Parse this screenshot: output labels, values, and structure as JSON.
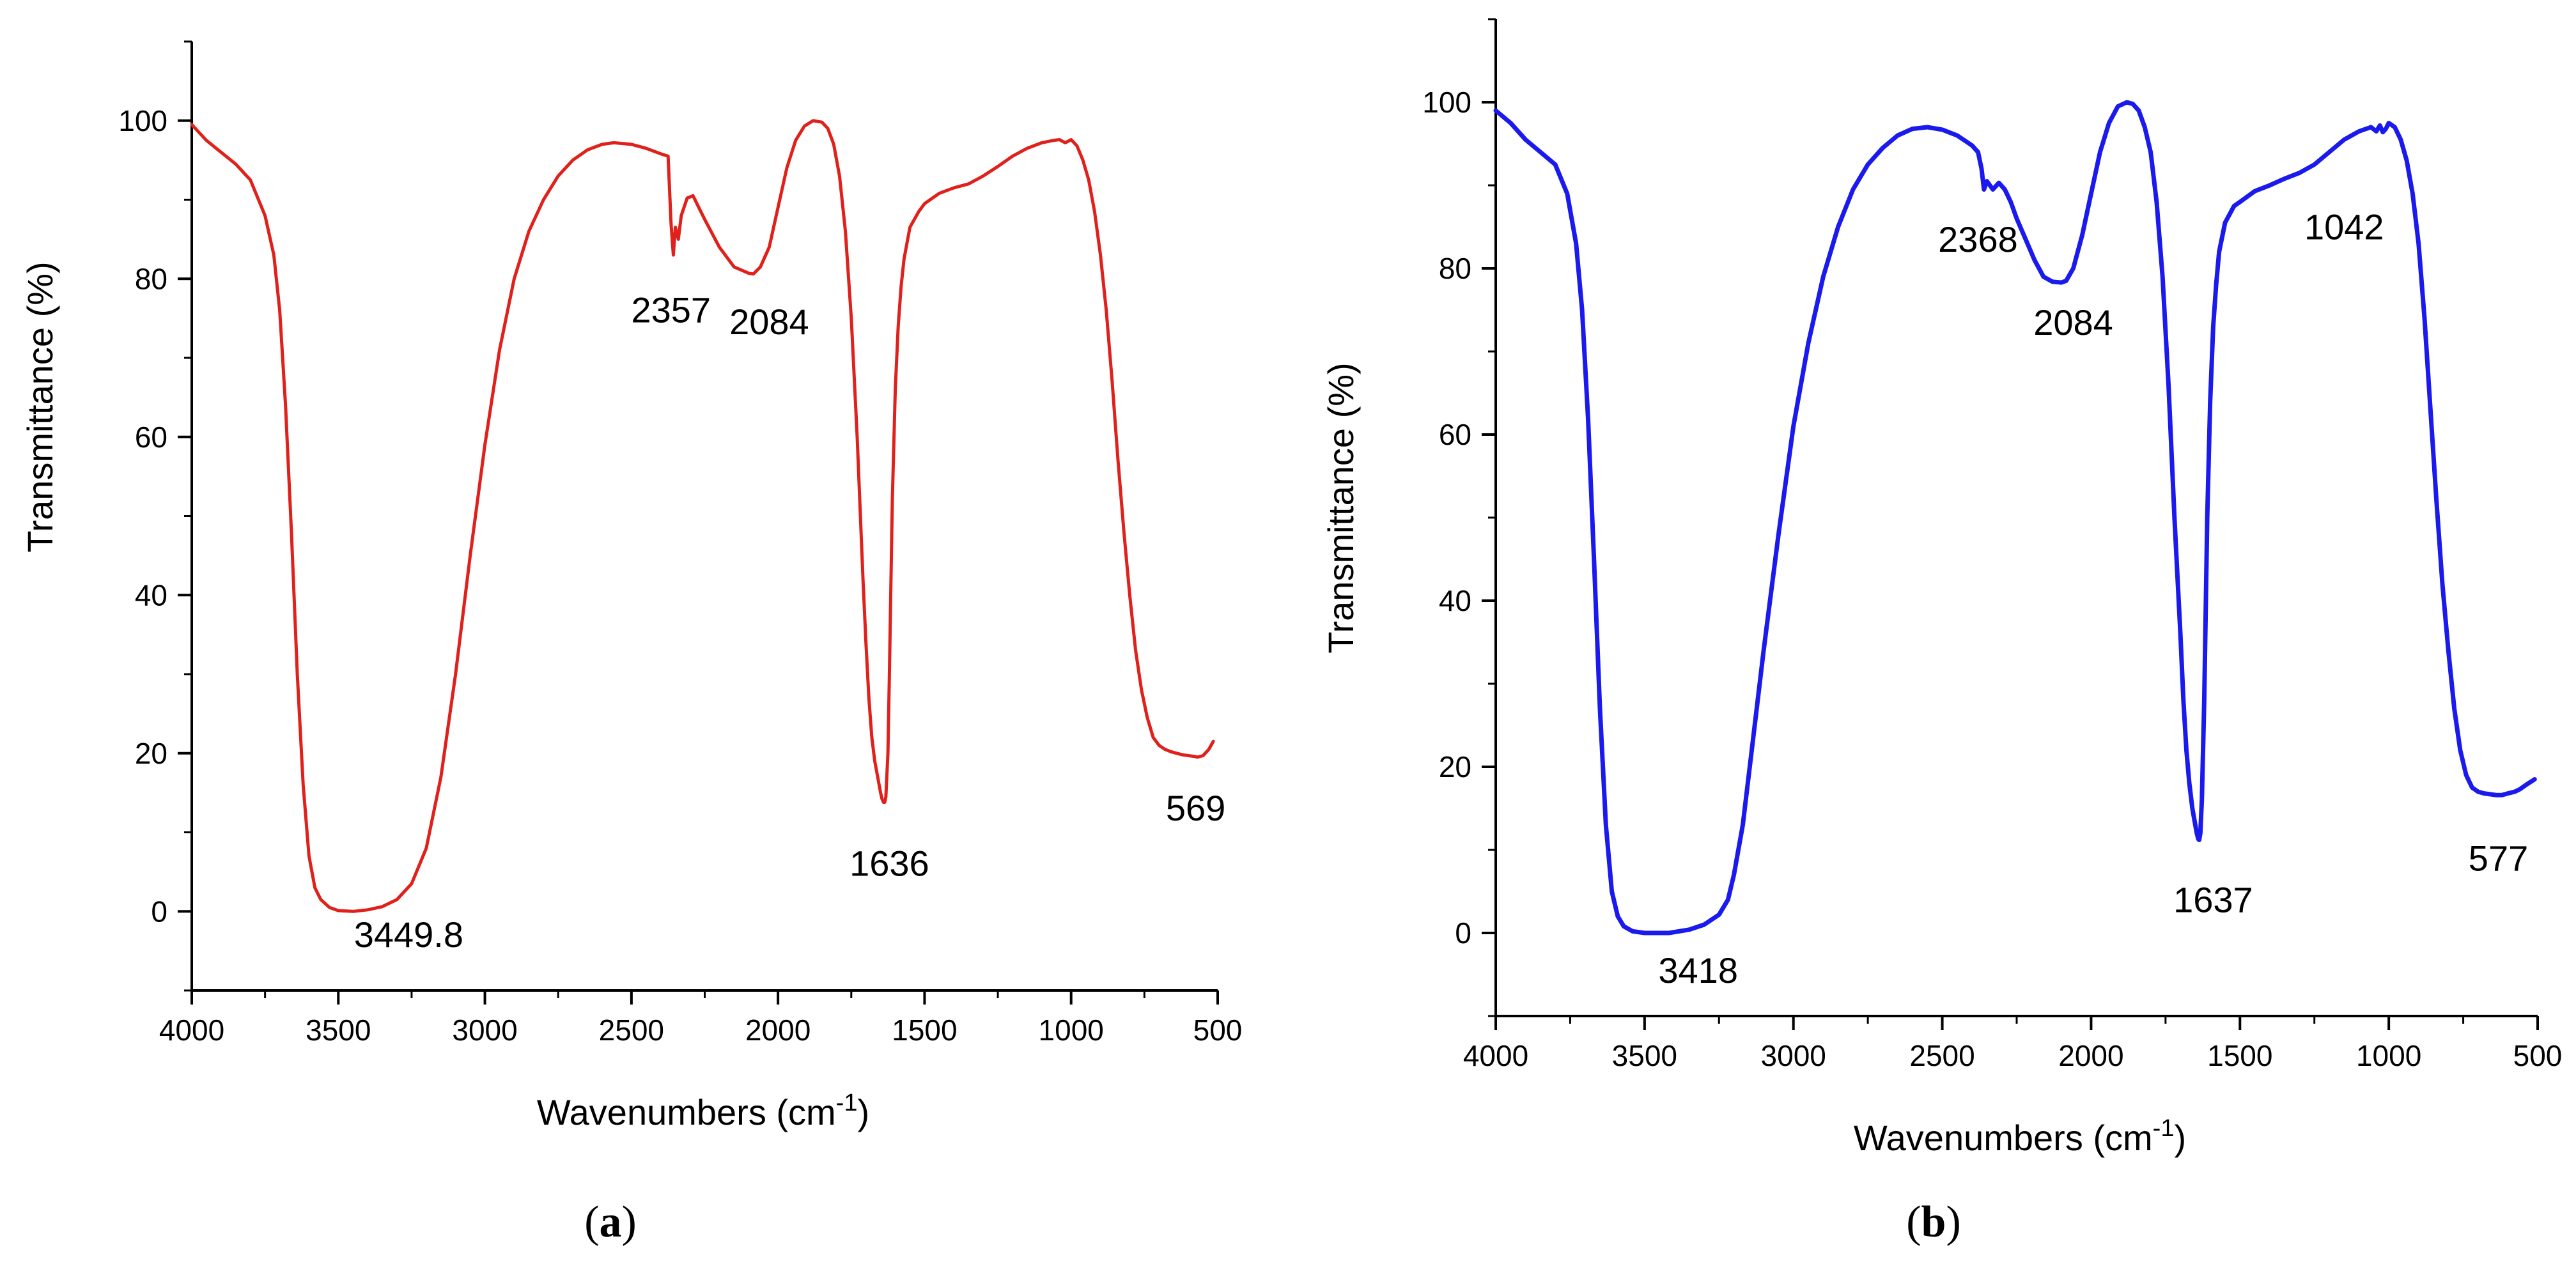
{
  "chart_data": [
    {
      "type": "line",
      "panel_label": "a",
      "xlabel": "Wavenumbers (cm",
      "xlabel_sup": "-1",
      "xlabel_close": ")",
      "ylabel": "Transmittance (%)",
      "xlim": [
        4000,
        500
      ],
      "ylim": [
        -10,
        110
      ],
      "xticks": [
        4000,
        3500,
        3000,
        2500,
        2000,
        1500,
        1000,
        500
      ],
      "yticks": [
        0,
        20,
        40,
        60,
        80,
        100
      ],
      "series": [
        {
          "name": "spectrum-a",
          "color": "#e0201b",
          "x": [
            4000,
            3950,
            3900,
            3850,
            3800,
            3750,
            3720,
            3700,
            3680,
            3660,
            3640,
            3620,
            3600,
            3580,
            3560,
            3530,
            3500,
            3449.8,
            3400,
            3350,
            3300,
            3250,
            3200,
            3150,
            3100,
            3050,
            3000,
            2950,
            2900,
            2850,
            2800,
            2750,
            2700,
            2650,
            2600,
            2560,
            2500,
            2450,
            2400,
            2375,
            2365,
            2357,
            2350,
            2340,
            2330,
            2310,
            2290,
            2270,
            2250,
            2200,
            2150,
            2100,
            2084,
            2060,
            2030,
            2000,
            1970,
            1940,
            1910,
            1880,
            1850,
            1830,
            1810,
            1790,
            1770,
            1750,
            1730,
            1710,
            1700,
            1690,
            1680,
            1670,
            1660,
            1650,
            1645,
            1640,
            1636,
            1632,
            1625,
            1620,
            1610,
            1600,
            1590,
            1580,
            1570,
            1550,
            1520,
            1500,
            1450,
            1400,
            1350,
            1300,
            1250,
            1200,
            1150,
            1100,
            1060,
            1040,
            1020,
            1000,
            980,
            960,
            940,
            920,
            900,
            880,
            860,
            840,
            820,
            800,
            780,
            760,
            740,
            720,
            700,
            680,
            660,
            640,
            620,
            600,
            580,
            569,
            550,
            530,
            515
          ],
          "y": [
            99.5,
            97.5,
            96,
            94.5,
            92.5,
            88,
            83,
            76,
            64,
            48,
            30,
            16,
            7,
            3,
            1.5,
            0.5,
            0.1,
            0.0,
            0.2,
            0.6,
            1.5,
            3.5,
            8,
            17,
            30,
            45,
            59,
            71,
            80,
            86,
            90,
            93,
            95,
            96.3,
            97,
            97.2,
            97,
            96.5,
            95.8,
            95.5,
            87,
            83.0,
            86.5,
            85,
            88,
            90.2,
            90.5,
            89,
            87.5,
            84,
            81.5,
            80.7,
            80.6,
            81.5,
            84,
            89,
            94,
            97.5,
            99.3,
            100,
            99.8,
            99,
            97,
            93,
            86,
            75,
            60,
            42,
            34,
            27,
            22,
            19,
            17,
            15,
            14.2,
            13.8,
            13.8,
            14.5,
            20,
            30,
            52,
            66,
            74,
            79,
            82.5,
            86.5,
            88.5,
            89.5,
            90.8,
            91.5,
            92,
            93,
            94.2,
            95.5,
            96.5,
            97.2,
            97.5,
            97.6,
            97.2,
            97.6,
            96.8,
            95,
            92.5,
            88.5,
            83,
            76,
            67,
            57,
            48,
            40,
            33,
            28,
            24.5,
            22,
            21,
            20.5,
            20.2,
            20,
            19.8,
            19.7,
            19.6,
            19.5,
            19.7,
            20.5,
            21.5
          ]
        }
      ],
      "annotations": [
        {
          "text": "3449.8",
          "x": 3260,
          "y": -4.5
        },
        {
          "text": "2357",
          "x": 2365,
          "y": 74.5
        },
        {
          "text": "2084",
          "x": 2030,
          "y": 73
        },
        {
          "text": "1636",
          "x": 1620,
          "y": 4.5
        },
        {
          "text": "569",
          "x": 575,
          "y": 11.5
        }
      ]
    },
    {
      "type": "line",
      "panel_label": "b",
      "xlabel": "Wavenumbers (cm",
      "xlabel_sup": "-1",
      "xlabel_close": ")",
      "ylabel": "Transmittance (%)",
      "xlim": [
        4000,
        500
      ],
      "ylim": [
        -10,
        110
      ],
      "xticks": [
        4000,
        3500,
        3000,
        2500,
        2000,
        1500,
        1000,
        500
      ],
      "yticks": [
        0,
        20,
        40,
        60,
        80,
        100
      ],
      "series": [
        {
          "name": "spectrum-b",
          "color": "#1a1aee",
          "x": [
            4000,
            3950,
            3900,
            3850,
            3800,
            3760,
            3730,
            3710,
            3690,
            3670,
            3650,
            3630,
            3610,
            3590,
            3570,
            3540,
            3500,
            3418,
            3350,
            3300,
            3250,
            3220,
            3200,
            3170,
            3140,
            3100,
            3050,
            3000,
            2950,
            2900,
            2850,
            2800,
            2750,
            2700,
            2650,
            2600,
            2550,
            2500,
            2450,
            2400,
            2380,
            2368,
            2360,
            2350,
            2330,
            2310,
            2290,
            2270,
            2250,
            2220,
            2190,
            2160,
            2130,
            2100,
            2084,
            2060,
            2030,
            2000,
            1970,
            1940,
            1910,
            1880,
            1860,
            1840,
            1820,
            1800,
            1780,
            1760,
            1740,
            1720,
            1700,
            1690,
            1680,
            1670,
            1660,
            1650,
            1645,
            1640,
            1637,
            1633,
            1628,
            1620,
            1610,
            1600,
            1590,
            1580,
            1570,
            1550,
            1520,
            1500,
            1450,
            1400,
            1350,
            1300,
            1250,
            1200,
            1150,
            1100,
            1060,
            1042,
            1030,
            1020,
            1010,
            1000,
            980,
            960,
            940,
            920,
            900,
            880,
            860,
            840,
            820,
            800,
            780,
            760,
            740,
            720,
            700,
            680,
            660,
            640,
            620,
            600,
            577,
            560,
            540,
            510
          ],
          "y": [
            99,
            97.5,
            95.5,
            94,
            92.5,
            89,
            83,
            75,
            62,
            45,
            27,
            13,
            5,
            2,
            0.8,
            0.2,
            0,
            0,
            0.4,
            1,
            2.2,
            4,
            7,
            13,
            22,
            34,
            48,
            61,
            71,
            79,
            85,
            89.5,
            92.5,
            94.5,
            96,
            96.8,
            97,
            96.7,
            96,
            94.8,
            94,
            92,
            89.5,
            90.5,
            89.5,
            90.3,
            89.5,
            88,
            86,
            83.5,
            81,
            79,
            78.4,
            78.3,
            78.5,
            80,
            84,
            89,
            94,
            97.5,
            99.5,
            100,
            99.8,
            99,
            97,
            94,
            88,
            79,
            66,
            50,
            36,
            28,
            22,
            18,
            15,
            13,
            12,
            11.3,
            11.2,
            12,
            16,
            28,
            50,
            64,
            73,
            78,
            82,
            85.5,
            87.5,
            88,
            89.3,
            90,
            90.8,
            91.5,
            92.5,
            94,
            95.5,
            96.5,
            97,
            96.5,
            97.2,
            96.4,
            96.8,
            97.5,
            97,
            95.5,
            93,
            89,
            83,
            74,
            63,
            52,
            42,
            34,
            27,
            22,
            19,
            17.5,
            17,
            16.8,
            16.7,
            16.6,
            16.6,
            16.8,
            17,
            17.3,
            17.8,
            18.5
          ]
        }
      ],
      "annotations": [
        {
          "text": "3418",
          "x": 3320,
          "y": -6
        },
        {
          "text": "2368",
          "x": 2380,
          "y": 82
        },
        {
          "text": "2084",
          "x": 2060,
          "y": 72
        },
        {
          "text": "1637",
          "x": 1590,
          "y": 2.5
        },
        {
          "text": "1042",
          "x": 1150,
          "y": 83.5
        },
        {
          "text": "577",
          "x": 632,
          "y": 7.5
        }
      ]
    }
  ],
  "captions": [
    {
      "open": "(",
      "letter": "a",
      "close": ")"
    },
    {
      "open": "(",
      "letter": "b",
      "close": ")"
    }
  ]
}
